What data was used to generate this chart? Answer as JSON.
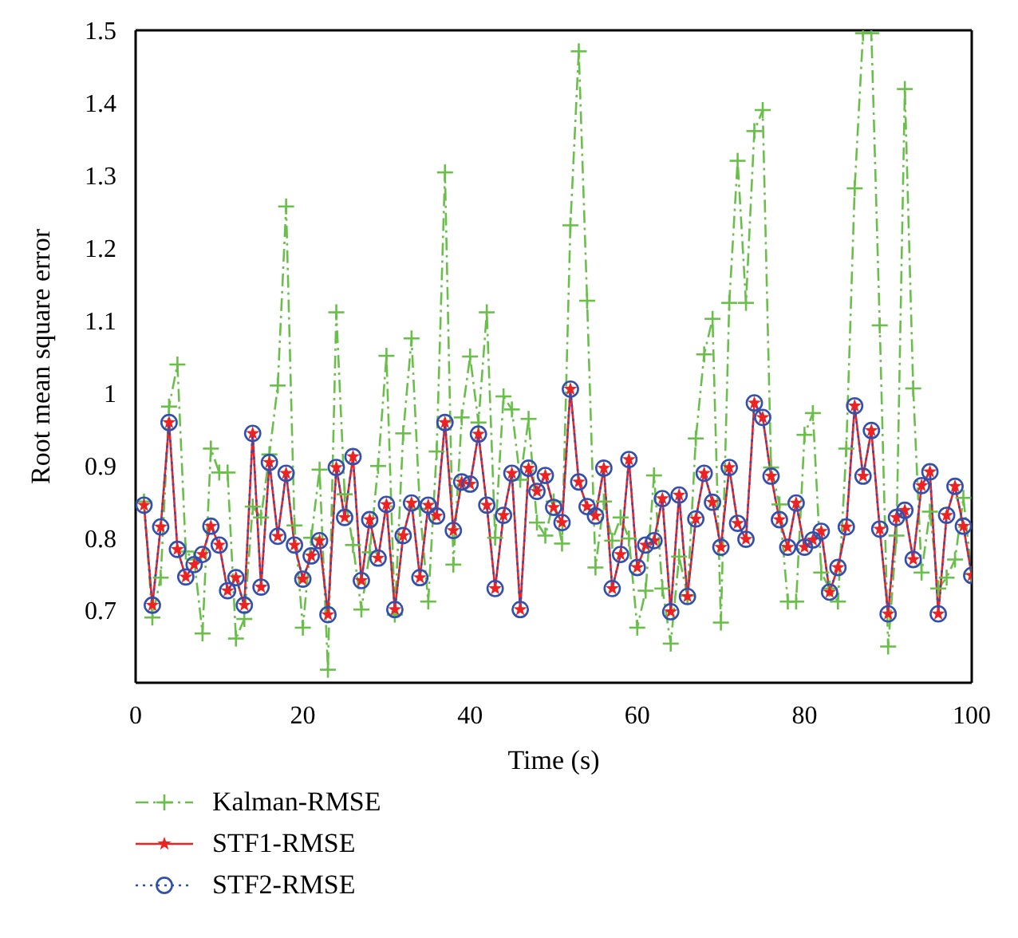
{
  "chart_data": {
    "type": "line",
    "xlabel": "Time (s)",
    "ylabel": "Root mean square error",
    "x": [
      1,
      2,
      3,
      4,
      5,
      6,
      7,
      8,
      9,
      10,
      11,
      12,
      13,
      14,
      15,
      16,
      17,
      18,
      19,
      20,
      21,
      22,
      23,
      24,
      25,
      26,
      27,
      28,
      29,
      30,
      31,
      32,
      33,
      34,
      35,
      36,
      37,
      38,
      39,
      40,
      41,
      42,
      43,
      44,
      45,
      46,
      47,
      48,
      49,
      50,
      51,
      52,
      53,
      54,
      55,
      56,
      57,
      58,
      59,
      60,
      61,
      62,
      63,
      64,
      65,
      66,
      67,
      68,
      69,
      70,
      71,
      72,
      73,
      74,
      75,
      76,
      77,
      78,
      79,
      80,
      81,
      82,
      83,
      84,
      85,
      86,
      87,
      88,
      89,
      90,
      91,
      92,
      93,
      94,
      95,
      96,
      97,
      98,
      99,
      100
    ],
    "xlim": [
      0,
      100
    ],
    "xticks": [
      0,
      20,
      40,
      60,
      80,
      100
    ],
    "ylim": [
      0.6,
      1.5
    ],
    "yticks": [
      0.7,
      0.8,
      0.9,
      1,
      1.1,
      1.2,
      1.3,
      1.4,
      1.5
    ],
    "grid": false,
    "legend": "bottom",
    "series": [
      {
        "name": "Kalman-RMSE",
        "color": "#6abf4b",
        "marker": "cross",
        "line_style": "dashdot",
        "values": [
          0.85,
          0.69,
          0.745,
          0.981,
          1.039,
          0.781,
          0.77,
          0.668,
          0.923,
          0.89,
          0.89,
          0.661,
          0.688,
          0.843,
          0.828,
          0.915,
          1.01,
          1.257,
          0.817,
          0.676,
          0.8,
          0.894,
          0.618,
          1.111,
          0.86,
          0.79,
          0.701,
          0.78,
          0.899,
          1.051,
          0.694,
          0.944,
          1.075,
          0.84,
          0.712,
          0.919,
          1.304,
          0.763,
          0.966,
          1.05,
          0.959,
          1.111,
          0.8,
          0.995,
          0.977,
          0.88,
          0.964,
          0.821,
          0.803,
          0.85,
          0.792,
          1.231,
          1.471,
          1.127,
          0.759,
          0.85,
          0.796,
          0.828,
          0.799,
          0.676,
          0.727,
          0.886,
          0.73,
          0.654,
          0.774,
          0.72,
          0.937,
          1.053,
          1.102,
          0.683,
          1.124,
          1.32,
          1.124,
          1.361,
          1.39,
          0.897,
          0.846,
          0.712,
          0.712,
          0.942,
          0.972,
          0.752,
          0.73,
          0.712,
          0.923,
          1.282,
          1.496,
          1.496,
          1.093,
          0.65,
          0.803,
          1.419,
          1.006,
          0.752,
          0.836,
          0.73,
          0.745,
          0.77,
          0.855,
          0.75
        ]
      },
      {
        "name": "STF1-RMSE",
        "color": "#ee2222",
        "marker": "star",
        "line_style": "solid",
        "values": [
          0.845,
          0.707,
          0.815,
          0.959,
          0.784,
          0.746,
          0.763,
          0.777,
          0.816,
          0.79,
          0.727,
          0.745,
          0.707,
          0.944,
          0.732,
          0.904,
          0.802,
          0.889,
          0.79,
          0.743,
          0.775,
          0.796,
          0.694,
          0.897,
          0.828,
          0.912,
          0.741,
          0.825,
          0.772,
          0.846,
          0.701,
          0.803,
          0.848,
          0.745,
          0.845,
          0.83,
          0.959,
          0.81,
          0.877,
          0.874,
          0.943,
          0.845,
          0.73,
          0.831,
          0.889,
          0.701,
          0.896,
          0.864,
          0.886,
          0.842,
          0.821,
          1.005,
          0.877,
          0.843,
          0.83,
          0.896,
          0.73,
          0.777,
          0.908,
          0.759,
          0.79,
          0.796,
          0.854,
          0.698,
          0.859,
          0.719,
          0.826,
          0.889,
          0.849,
          0.787,
          0.897,
          0.82,
          0.798,
          0.986,
          0.966,
          0.885,
          0.825,
          0.787,
          0.848,
          0.787,
          0.797,
          0.809,
          0.725,
          0.759,
          0.815,
          0.982,
          0.885,
          0.948,
          0.812,
          0.695,
          0.828,
          0.838,
          0.77,
          0.872,
          0.891,
          0.695,
          0.831,
          0.871,
          0.816,
          0.748
        ]
      },
      {
        "name": "STF2-RMSE",
        "color": "#3050b0",
        "marker": "circle",
        "line_style": "dotted",
        "values": [
          0.845,
          0.707,
          0.815,
          0.959,
          0.784,
          0.746,
          0.763,
          0.777,
          0.816,
          0.79,
          0.727,
          0.745,
          0.707,
          0.944,
          0.732,
          0.904,
          0.802,
          0.889,
          0.79,
          0.743,
          0.775,
          0.796,
          0.694,
          0.897,
          0.828,
          0.912,
          0.741,
          0.825,
          0.772,
          0.846,
          0.701,
          0.803,
          0.848,
          0.745,
          0.845,
          0.83,
          0.959,
          0.81,
          0.877,
          0.874,
          0.943,
          0.845,
          0.73,
          0.831,
          0.889,
          0.701,
          0.896,
          0.864,
          0.886,
          0.842,
          0.821,
          1.005,
          0.877,
          0.843,
          0.83,
          0.896,
          0.73,
          0.777,
          0.908,
          0.759,
          0.79,
          0.796,
          0.854,
          0.698,
          0.859,
          0.719,
          0.826,
          0.889,
          0.849,
          0.787,
          0.897,
          0.82,
          0.798,
          0.986,
          0.966,
          0.885,
          0.825,
          0.787,
          0.848,
          0.787,
          0.797,
          0.809,
          0.725,
          0.759,
          0.815,
          0.982,
          0.885,
          0.948,
          0.812,
          0.695,
          0.828,
          0.838,
          0.77,
          0.872,
          0.891,
          0.695,
          0.831,
          0.871,
          0.816,
          0.748
        ]
      }
    ]
  }
}
